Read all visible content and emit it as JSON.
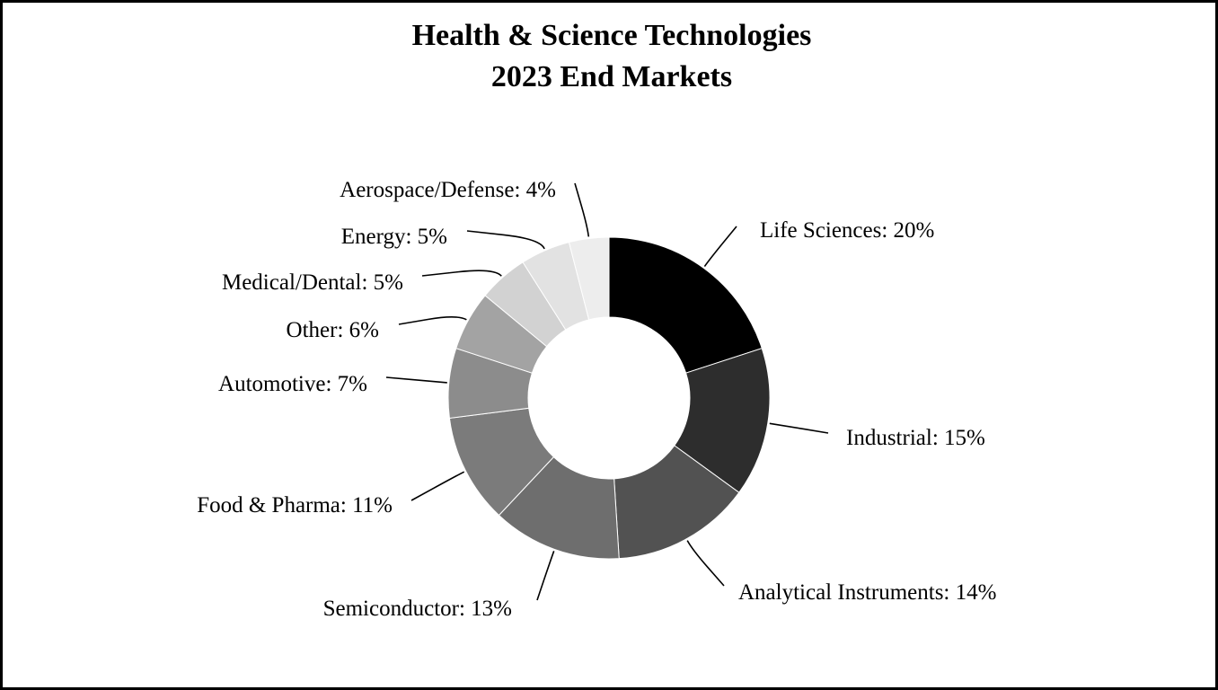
{
  "chart_data": {
    "type": "pie",
    "donut": true,
    "title": [
      "Health & Science Technologies",
      "2023 End Markets"
    ],
    "unit": "%",
    "slices": [
      {
        "name": "Life Sciences",
        "value": 20,
        "label": "Life Sciences: 20%",
        "color": "#000000"
      },
      {
        "name": "Industrial",
        "value": 15,
        "label": "Industrial: 15%",
        "color": "#2d2d2d"
      },
      {
        "name": "Analytical Instruments",
        "value": 14,
        "label": "Analytical Instruments: 14%",
        "color": "#525252"
      },
      {
        "name": "Semiconductor",
        "value": 13,
        "label": "Semiconductor: 13%",
        "color": "#6e6e6e"
      },
      {
        "name": "Food & Pharma",
        "value": 11,
        "label": "Food & Pharma: 11%",
        "color": "#7b7b7b"
      },
      {
        "name": "Automotive",
        "value": 7,
        "label": "Automotive: 7%",
        "color": "#8c8c8c"
      },
      {
        "name": "Other",
        "value": 6,
        "label": "Other: 6%",
        "color": "#a3a3a3"
      },
      {
        "name": "Medical/Dental",
        "value": 5,
        "label": "Medical/Dental: 5%",
        "color": "#d2d2d2"
      },
      {
        "name": "Energy",
        "value": 5,
        "label": "Energy: 5%",
        "color": "#e2e2e2"
      },
      {
        "name": "Aerospace/Defense",
        "value": 4,
        "label": "Aerospace/Defense: 4%",
        "color": "#ededed"
      }
    ]
  }
}
